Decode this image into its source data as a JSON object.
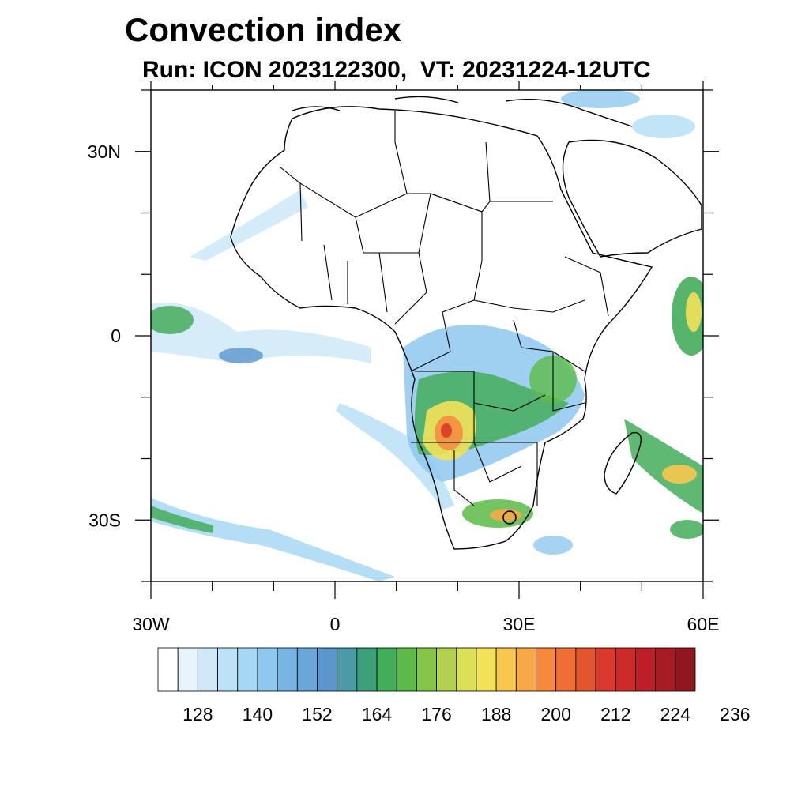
{
  "figure": {
    "title": "Convection index",
    "subtitle": "Run: ICON 2023122300,  VT: 20231224-12UTC"
  },
  "map": {
    "lat_range": [
      -40,
      40
    ],
    "lon_range": [
      -30,
      60
    ],
    "lat_ticks": [
      {
        "value": 30,
        "label": "30N"
      },
      {
        "value": 0,
        "label": "0"
      },
      {
        "value": -30,
        "label": "30S"
      }
    ],
    "lon_ticks": [
      {
        "value": -30,
        "label": "30W"
      },
      {
        "value": 0,
        "label": "0"
      },
      {
        "value": 30,
        "label": "30E"
      },
      {
        "value": 60,
        "label": "60E"
      }
    ]
  },
  "colorbar": {
    "levels": [
      "128",
      "140",
      "152",
      "164",
      "176",
      "188",
      "200",
      "212",
      "224",
      "236"
    ],
    "colors": [
      "#ffffff",
      "#e6f4fb",
      "#cfe9f8",
      "#bde2f6",
      "#a6d8f3",
      "#8ec8ee",
      "#78b5e3",
      "#6aa6d9",
      "#5b96cc",
      "#4a9aa8",
      "#3ea07a",
      "#44ad5a",
      "#5cba48",
      "#86c54a",
      "#b2d14f",
      "#dce056",
      "#f2e25a",
      "#f8c74e",
      "#f7a848",
      "#f58a3e",
      "#ef6e35",
      "#e4542f",
      "#d93a2b",
      "#cc2a2b",
      "#bd1e27",
      "#a71b23",
      "#8f171d"
    ]
  }
}
